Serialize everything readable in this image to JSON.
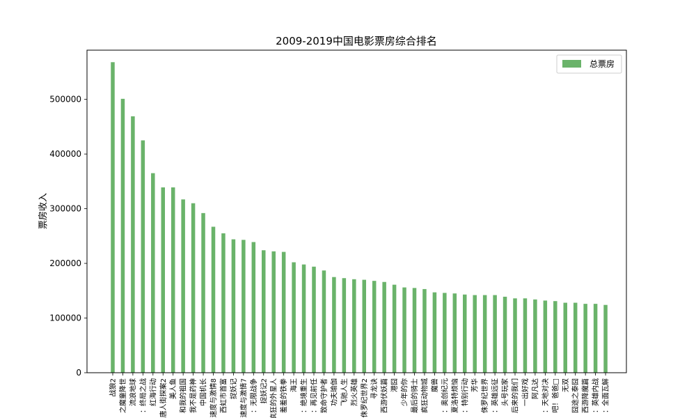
{
  "chart_data": {
    "type": "bar",
    "title": "2009-2019中国电影票房综合排名",
    "xlabel": "",
    "ylabel": "票房收入",
    "ylim": [
      0,
      590000
    ],
    "yticks": [
      0,
      100000,
      200000,
      300000,
      400000,
      500000
    ],
    "ytick_labels": [
      "0",
      "100000",
      "200000",
      "300000",
      "400000",
      "500000"
    ],
    "grid": false,
    "legend_position": "top-right",
    "categories": [
      "战狼2",
      "之魔童降世",
      "流浪地球",
      "：终局之战",
      "红海行动",
      "唐人街探案2",
      "美人鱼",
      "和我的祖国",
      "我不是药神",
      "中国机长",
      "速度与激情8",
      "西虹市首富",
      "捉妖记",
      "速度与激情7",
      "：无限战争",
      "捉妖记2",
      "疯狂的外星人",
      "羞羞的铁拳",
      "海王",
      "：绝境重生",
      "：再见前任",
      "致命守护者",
      "功夫瑜伽",
      "飞驰人生",
      "烈火英雄",
      "侏罗纪世界2",
      "寻龙诀",
      "西游伏妖篇",
      "港囧",
      "少年的你",
      "最后的骑士",
      "疯狂动物城",
      "魔兽",
      "：奥创纪元",
      "夏洛特烦恼",
      "：特别行动",
      "芳华",
      "侏罗纪世界",
      "：英雄远征",
      "头号玩家",
      "后来的我们",
      "一出好戏",
      "阿凡达",
      "：天地对决",
      "吧！爸爸□",
      "无双",
      "囧途之泰囧",
      "西游降魔篇",
      "：英雄内战",
      "：全面瓦解"
    ],
    "series": [
      {
        "name": "总票房",
        "color": "#6ab36a",
        "values": [
          568000,
          501000,
          469000,
          425000,
          365000,
          339000,
          339000,
          317000,
          310000,
          292000,
          267000,
          255000,
          244000,
          243000,
          239000,
          224000,
          222000,
          221000,
          202000,
          198000,
          194000,
          187000,
          175000,
          173000,
          171000,
          170000,
          168000,
          166000,
          161000,
          156000,
          155000,
          153000,
          147000,
          146000,
          145000,
          143000,
          142000,
          142000,
          142000,
          139000,
          136000,
          136000,
          134000,
          132000,
          131000,
          128000,
          128000,
          126000,
          126000,
          124000
        ]
      }
    ]
  }
}
